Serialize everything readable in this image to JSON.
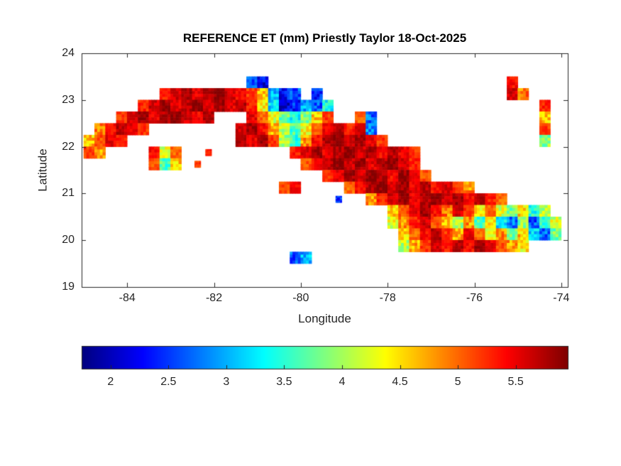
{
  "chart_data": {
    "type": "heatmap",
    "title": "REFERENCE ET (mm) Priestly Taylor 18-Oct-2025",
    "xlabel": "Longitude",
    "ylabel": "Latitude",
    "xlim": [
      -85.05,
      -73.85
    ],
    "ylim": [
      19,
      24
    ],
    "xticks": [
      -84,
      -82,
      -80,
      -78,
      -76,
      -74
    ],
    "yticks": [
      19,
      20,
      21,
      22,
      23,
      24
    ],
    "colormap": "jet",
    "clim": [
      1.75,
      5.95
    ],
    "colorbar_ticks": [
      2,
      2.5,
      3,
      3.5,
      4,
      4.5,
      5,
      5.5
    ],
    "colorbar_orientation": "horizontal",
    "units": "mm",
    "region": "Cuba",
    "grid": {
      "lon_start": -84.875,
      "lon_step": 0.25,
      "lat_start": 23.375,
      "lat_step": -0.25,
      "ncols": 44,
      "nrows": 16
    },
    "values": [
      [
        null,
        null,
        null,
        null,
        null,
        null,
        null,
        null,
        null,
        null,
        null,
        null,
        null,
        null,
        null,
        2.6,
        2.2,
        null,
        null,
        null,
        null,
        null,
        null,
        null,
        null,
        null,
        null,
        null,
        null,
        null,
        null,
        null,
        null,
        null,
        null,
        null,
        null,
        null,
        null,
        5.4,
        null,
        null,
        null,
        null
      ],
      [
        null,
        null,
        null,
        null,
        null,
        null,
        null,
        5.3,
        5.6,
        5.8,
        5.5,
        5.7,
        5.9,
        5.6,
        5.4,
        5.2,
        4.6,
        3.0,
        2.3,
        2.6,
        null,
        2.4,
        null,
        null,
        null,
        null,
        null,
        null,
        null,
        null,
        null,
        null,
        null,
        null,
        null,
        null,
        null,
        null,
        null,
        5.6,
        4.9,
        null,
        null,
        null
      ],
      [
        null,
        null,
        null,
        null,
        null,
        5.3,
        5.6,
        5.8,
        5.5,
        5.7,
        5.9,
        5.6,
        5.8,
        5.5,
        5.7,
        5.3,
        4.4,
        3.2,
        2.1,
        2.4,
        3.0,
        2.6,
        3.4,
        null,
        null,
        null,
        null,
        null,
        null,
        null,
        null,
        null,
        null,
        null,
        null,
        null,
        null,
        null,
        null,
        null,
        null,
        null,
        5.3,
        null
      ],
      [
        null,
        null,
        null,
        5.2,
        5.6,
        5.8,
        5.5,
        5.7,
        5.9,
        5.6,
        5.4,
        5.7,
        null,
        null,
        null,
        5.5,
        5.0,
        4.3,
        3.7,
        3.4,
        3.9,
        4.6,
        5.2,
        null,
        null,
        5.0,
        2.7,
        null,
        null,
        null,
        null,
        null,
        null,
        null,
        null,
        null,
        null,
        null,
        null,
        null,
        null,
        null,
        4.6,
        null
      ],
      [
        null,
        4.9,
        5.4,
        5.7,
        5.5,
        5.2,
        null,
        null,
        null,
        null,
        null,
        null,
        null,
        null,
        5.6,
        5.8,
        5.4,
        4.7,
        4.1,
        3.6,
        4.4,
        5.0,
        5.5,
        5.7,
        5.3,
        5.6,
        2.8,
        null,
        null,
        null,
        null,
        null,
        null,
        null,
        null,
        null,
        null,
        null,
        null,
        null,
        null,
        null,
        5.2,
        null
      ],
      [
        4.6,
        5.1,
        5.5,
        5.3,
        null,
        null,
        null,
        null,
        null,
        null,
        null,
        null,
        null,
        null,
        5.7,
        5.5,
        5.8,
        5.2,
        4.0,
        3.5,
        4.8,
        5.4,
        5.7,
        5.9,
        5.6,
        5.8,
        5.5,
        5.2,
        null,
        null,
        null,
        null,
        null,
        null,
        null,
        null,
        null,
        null,
        null,
        null,
        null,
        null,
        3.9,
        null
      ],
      [
        5.2,
        4.8,
        null,
        null,
        null,
        null,
        5.4,
        4.2,
        5.0,
        null,
        null,
        5.3,
        null,
        null,
        null,
        null,
        null,
        null,
        null,
        5.3,
        5.6,
        5.8,
        5.5,
        5.7,
        5.9,
        5.6,
        5.8,
        5.4,
        5.7,
        5.5,
        5.2,
        null,
        null,
        null,
        null,
        null,
        null,
        null,
        null,
        null,
        null,
        null,
        null,
        null
      ],
      [
        null,
        null,
        null,
        null,
        null,
        null,
        5.1,
        3.6,
        4.6,
        null,
        5.2,
        null,
        null,
        null,
        null,
        null,
        null,
        null,
        null,
        null,
        5.1,
        5.4,
        5.7,
        5.9,
        5.6,
        5.8,
        5.5,
        5.7,
        5.9,
        5.6,
        5.3,
        null,
        null,
        null,
        null,
        null,
        null,
        null,
        null,
        null,
        null,
        null,
        null,
        null
      ],
      [
        null,
        null,
        null,
        null,
        null,
        null,
        null,
        null,
        null,
        null,
        null,
        null,
        null,
        null,
        null,
        null,
        null,
        null,
        null,
        null,
        null,
        null,
        5.2,
        5.5,
        5.8,
        5.6,
        5.9,
        5.7,
        5.4,
        5.8,
        5.5,
        5.1,
        null,
        null,
        null,
        null,
        null,
        null,
        null,
        null,
        null,
        null,
        null,
        null
      ],
      [
        null,
        null,
        null,
        null,
        null,
        null,
        null,
        null,
        null,
        null,
        null,
        null,
        null,
        null,
        null,
        null,
        null,
        null,
        5.1,
        5.4,
        null,
        null,
        null,
        null,
        5.0,
        5.4,
        5.7,
        5.9,
        5.6,
        5.8,
        5.5,
        5.7,
        5.4,
        5.6,
        5.2,
        4.8,
        null,
        null,
        null,
        null,
        null,
        null,
        null,
        null
      ],
      [
        null,
        null,
        null,
        null,
        null,
        null,
        null,
        null,
        null,
        null,
        null,
        null,
        null,
        null,
        null,
        null,
        null,
        null,
        null,
        null,
        null,
        null,
        null,
        2.5,
        null,
        null,
        4.8,
        5.3,
        5.6,
        5.8,
        5.5,
        5.7,
        5.9,
        5.6,
        5.8,
        5.4,
        5.7,
        5.3,
        5.0,
        null,
        null,
        null,
        null,
        null
      ],
      [
        null,
        null,
        null,
        null,
        null,
        null,
        null,
        null,
        null,
        null,
        null,
        null,
        null,
        null,
        null,
        null,
        null,
        null,
        null,
        null,
        null,
        null,
        null,
        null,
        null,
        null,
        null,
        null,
        4.6,
        5.1,
        5.5,
        5.8,
        5.4,
        4.9,
        5.6,
        5.2,
        4.4,
        5.0,
        4.2,
        3.8,
        4.5,
        3.5,
        4.1,
        null
      ],
      [
        null,
        null,
        null,
        null,
        null,
        null,
        null,
        null,
        null,
        null,
        null,
        null,
        null,
        null,
        null,
        null,
        null,
        null,
        null,
        null,
        null,
        null,
        null,
        null,
        null,
        null,
        null,
        null,
        4.3,
        4.8,
        5.3,
        5.6,
        5.1,
        4.6,
        4.0,
        4.8,
        3.6,
        4.4,
        3.2,
        2.8,
        3.9,
        2.6,
        3.4,
        4.2
      ],
      [
        null,
        null,
        null,
        null,
        null,
        null,
        null,
        null,
        null,
        null,
        null,
        null,
        null,
        null,
        null,
        null,
        null,
        null,
        null,
        null,
        null,
        null,
        null,
        null,
        null,
        null,
        null,
        null,
        null,
        4.5,
        5.0,
        5.4,
        5.7,
        5.2,
        4.7,
        5.5,
        5.0,
        4.3,
        4.9,
        3.7,
        4.6,
        3.1,
        2.7,
        3.8
      ],
      [
        null,
        null,
        null,
        null,
        null,
        null,
        null,
        null,
        null,
        null,
        null,
        null,
        null,
        null,
        null,
        null,
        null,
        null,
        null,
        null,
        null,
        null,
        null,
        null,
        null,
        null,
        null,
        null,
        null,
        4.1,
        4.7,
        5.2,
        5.6,
        5.3,
        5.7,
        5.4,
        5.8,
        5.5,
        5.1,
        4.8,
        4.4,
        null,
        null,
        null
      ],
      [
        null,
        null,
        null,
        null,
        null,
        null,
        null,
        null,
        null,
        null,
        null,
        null,
        null,
        null,
        null,
        null,
        null,
        null,
        null,
        2.6,
        3.0,
        null,
        null,
        null,
        null,
        null,
        null,
        null,
        null,
        null,
        null,
        null,
        null,
        null,
        null,
        null,
        null,
        null,
        null,
        null,
        null,
        null,
        null,
        null
      ]
    ]
  }
}
